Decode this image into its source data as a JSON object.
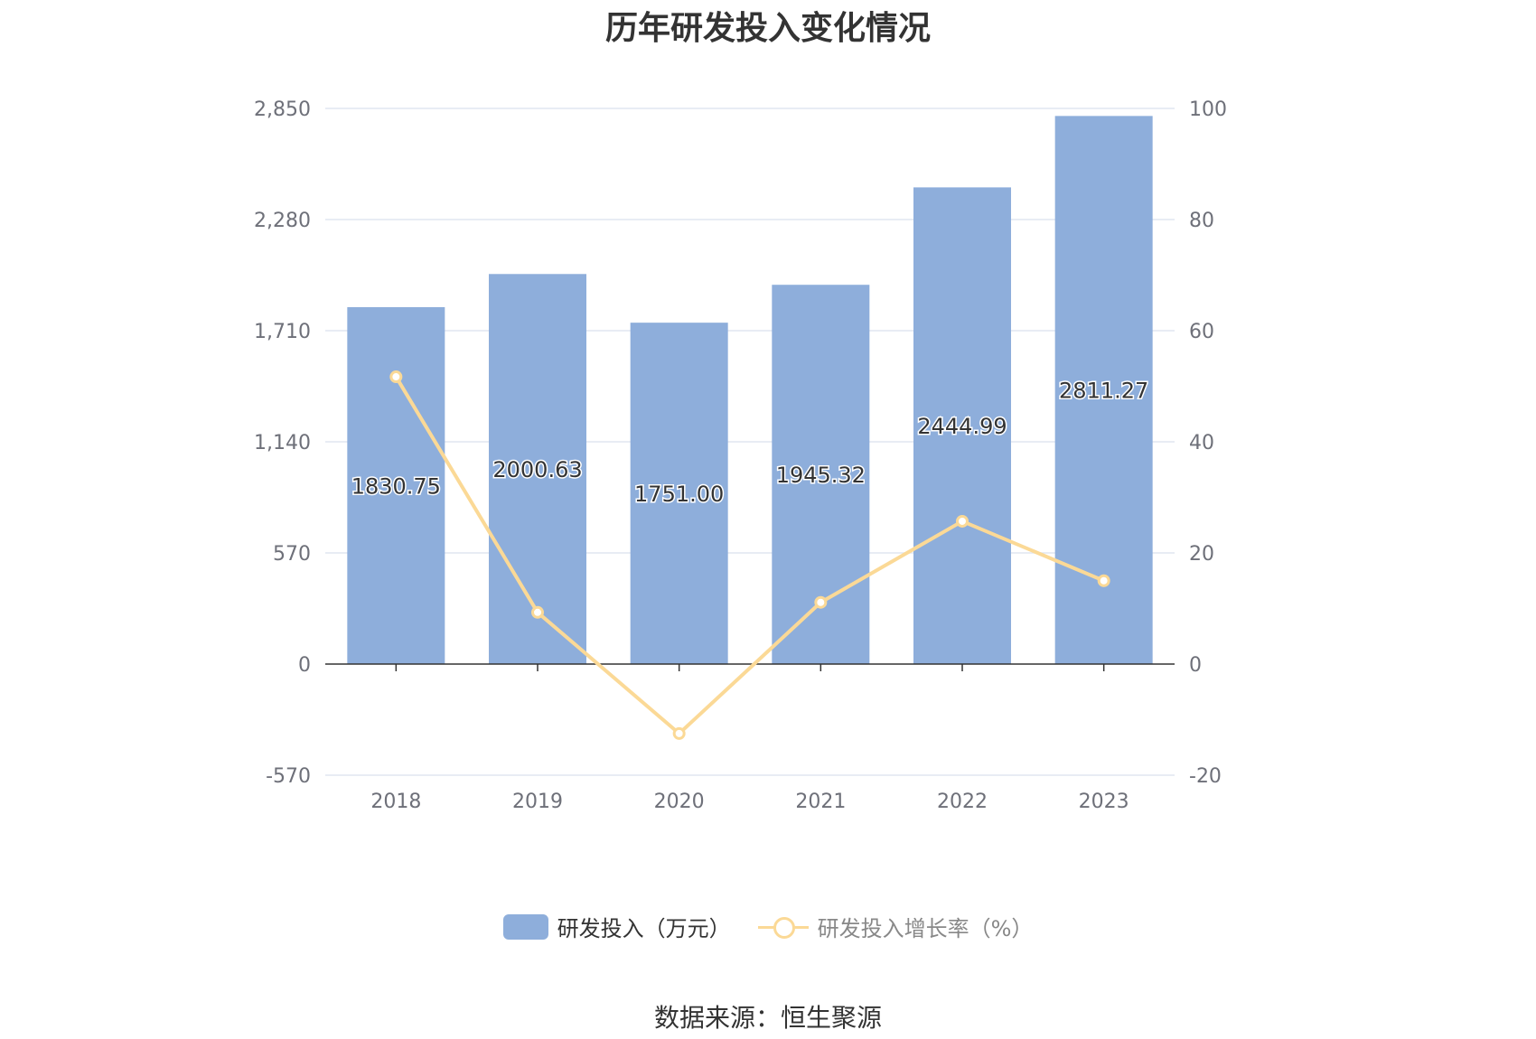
{
  "title": "历年研发投入变化情况",
  "source": "数据来源：恒生聚源",
  "colors": {
    "bar": "#8eaedb",
    "line": "#fbd996",
    "grid": "#e0e6f1",
    "axis": "#6e7079",
    "baseline": "#333333"
  },
  "chart_data": {
    "type": "bar",
    "categories": [
      "2018",
      "2019",
      "2020",
      "2021",
      "2022",
      "2023"
    ],
    "series": [
      {
        "name": "研发投入（万元）",
        "type": "bar",
        "axis": "left",
        "values": [
          1830.75,
          2000.63,
          1751.0,
          1945.32,
          2444.99,
          2811.27
        ],
        "labels": [
          "1830.75",
          "2000.63",
          "1751.00",
          "1945.32",
          "2444.99",
          "2811.27"
        ]
      },
      {
        "name": "研发投入增长率（%）",
        "type": "line",
        "axis": "right",
        "values": [
          51.7,
          9.3,
          -12.5,
          11.1,
          25.7,
          15.0
        ]
      }
    ],
    "y_left": {
      "ticks": [
        -570,
        0,
        570,
        1140,
        1710,
        2280,
        2850
      ],
      "tick_labels": [
        "-570",
        "0",
        "570",
        "1,140",
        "1,710",
        "2,280",
        "2,850"
      ],
      "range": [
        -570,
        2850
      ]
    },
    "y_right": {
      "ticks": [
        -20,
        0,
        20,
        40,
        60,
        80,
        100
      ],
      "tick_labels": [
        "-20",
        "0",
        "20",
        "40",
        "60",
        "80",
        "100"
      ],
      "range": [
        -20,
        100
      ]
    },
    "grid": true,
    "legend_position": "bottom"
  }
}
